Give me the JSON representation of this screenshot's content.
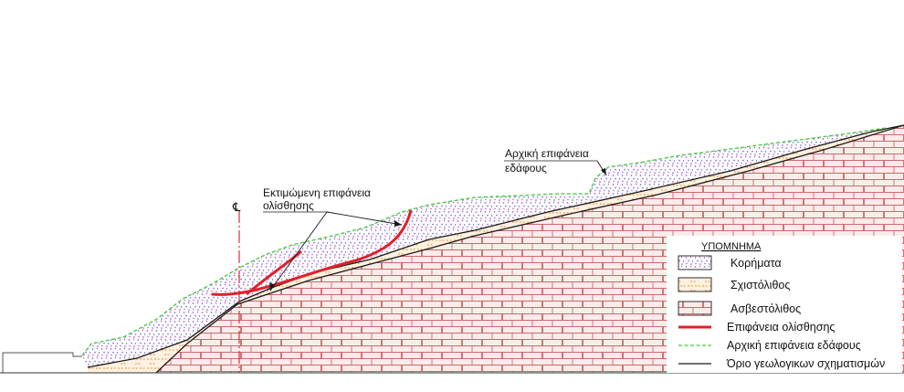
{
  "annotations": {
    "initial_surface_line1": "Αρχική επιφάνεια",
    "initial_surface_line2": "εδάφους",
    "slip_estimate_line1": "Εκτιμώμενη επιφάνεια",
    "slip_estimate_line2": "ολίσθησης",
    "centerline_symbol": "℄"
  },
  "legend": {
    "title": "ΥΠΟΜΝΗΜΑ",
    "items": [
      {
        "label": "Κορήματα",
        "kind": "scree"
      },
      {
        "label": "Σχιστόλιθος",
        "kind": "schist"
      },
      {
        "label": "Ασβεστόλιθος",
        "kind": "limestone"
      },
      {
        "label": "Επιφάνεια ολίσθησης",
        "kind": "slip-line"
      },
      {
        "label": "Αρχική επιφάνεια εδάφους",
        "kind": "initial-ground-line"
      },
      {
        "label": "Όριο γεωλογικων σχηματισμών",
        "kind": "boundary-line"
      }
    ]
  },
  "colors": {
    "slip": "#e0202a",
    "initial_ground": "#46c93a",
    "boundary": "#1a1a1a",
    "limestone_fill": "#fbecec",
    "limestone_line": "#c96a6a",
    "schist_fill": "#fdf1e0",
    "schist_mark": "#e8923a",
    "scree_dot_a": "#6b5bd6",
    "scree_dot_b": "#d64a8a",
    "centerline": "#d0202a"
  }
}
